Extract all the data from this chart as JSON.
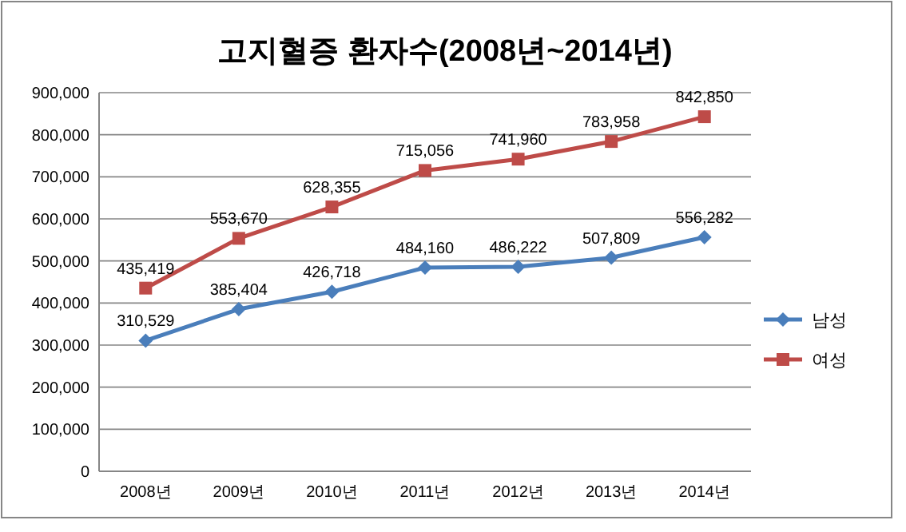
{
  "chart_data": {
    "type": "line",
    "title": "고지혈증 환자수(2008년~2014년)",
    "categories": [
      "2008년",
      "2009년",
      "2010년",
      "2011년",
      "2012년",
      "2013년",
      "2014년"
    ],
    "series": [
      {
        "name": "남성",
        "color": "#4a7ebb",
        "marker": "diamond",
        "values": [
          310529,
          385404,
          426718,
          484160,
          486222,
          507809,
          556282
        ],
        "value_labels": [
          "310,529",
          "385,404",
          "426,718",
          "484,160",
          "486,222",
          "507,809",
          "556,282"
        ]
      },
      {
        "name": "여성",
        "color": "#be4b48",
        "marker": "square",
        "values": [
          435419,
          553670,
          628355,
          715056,
          741960,
          783958,
          842850
        ],
        "value_labels": [
          "435,419",
          "553,670",
          "628,355",
          "715,056",
          "741,960",
          "783,958",
          "842,850"
        ]
      }
    ],
    "ylim": [
      0,
      900000
    ],
    "yticks": [
      {
        "value": 0,
        "label": "0"
      },
      {
        "value": 100000,
        "label": "100,000"
      },
      {
        "value": 200000,
        "label": "200,000"
      },
      {
        "value": 300000,
        "label": "300,000"
      },
      {
        "value": 400000,
        "label": "400,000"
      },
      {
        "value": 500000,
        "label": "500,000"
      },
      {
        "value": 600000,
        "label": "600,000"
      },
      {
        "value": 700000,
        "label": "700,000"
      },
      {
        "value": 800000,
        "label": "800,000"
      },
      {
        "value": 900000,
        "label": "900,000"
      }
    ],
    "grid": "y",
    "legend": "right",
    "line_style": "solid"
  }
}
